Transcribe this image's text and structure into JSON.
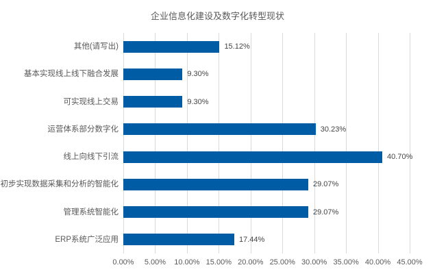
{
  "chart_data": {
    "type": "bar",
    "orientation": "horizontal",
    "title": "企业信息化建设及数字化转型现状",
    "categories": [
      "其他(请写出)",
      "基本实现线上线下融合发展",
      "可实现线上交易",
      "运营体系部分数字化",
      "线上向线下引流",
      "初步实现数据采集和分析的智能化",
      "管理系统智能化",
      "ERP系统广泛应用"
    ],
    "values": [
      15.12,
      9.3,
      9.3,
      30.23,
      40.7,
      29.07,
      29.07,
      17.44
    ],
    "value_labels": [
      "15.12%",
      "9.30%",
      "9.30%",
      "30.23%",
      "40.70%",
      "29.07%",
      "29.07%",
      "17.44%"
    ],
    "x_ticks": [
      "0.00%",
      "5.00%",
      "10.00%",
      "15.00%",
      "20.00%",
      "25.00%",
      "30.00%",
      "35.00%",
      "40.00%",
      "45.00%"
    ],
    "xlim": [
      0,
      45
    ],
    "xlabel": "",
    "ylabel": "",
    "legend": "none",
    "grid": "vertical",
    "colors": {
      "bar": "#005CA5",
      "gridline": "#D9D9D9",
      "title_text": "#595959",
      "axis_text": "#595959",
      "value_text": "#444444",
      "background": "#FFFFFF"
    }
  }
}
